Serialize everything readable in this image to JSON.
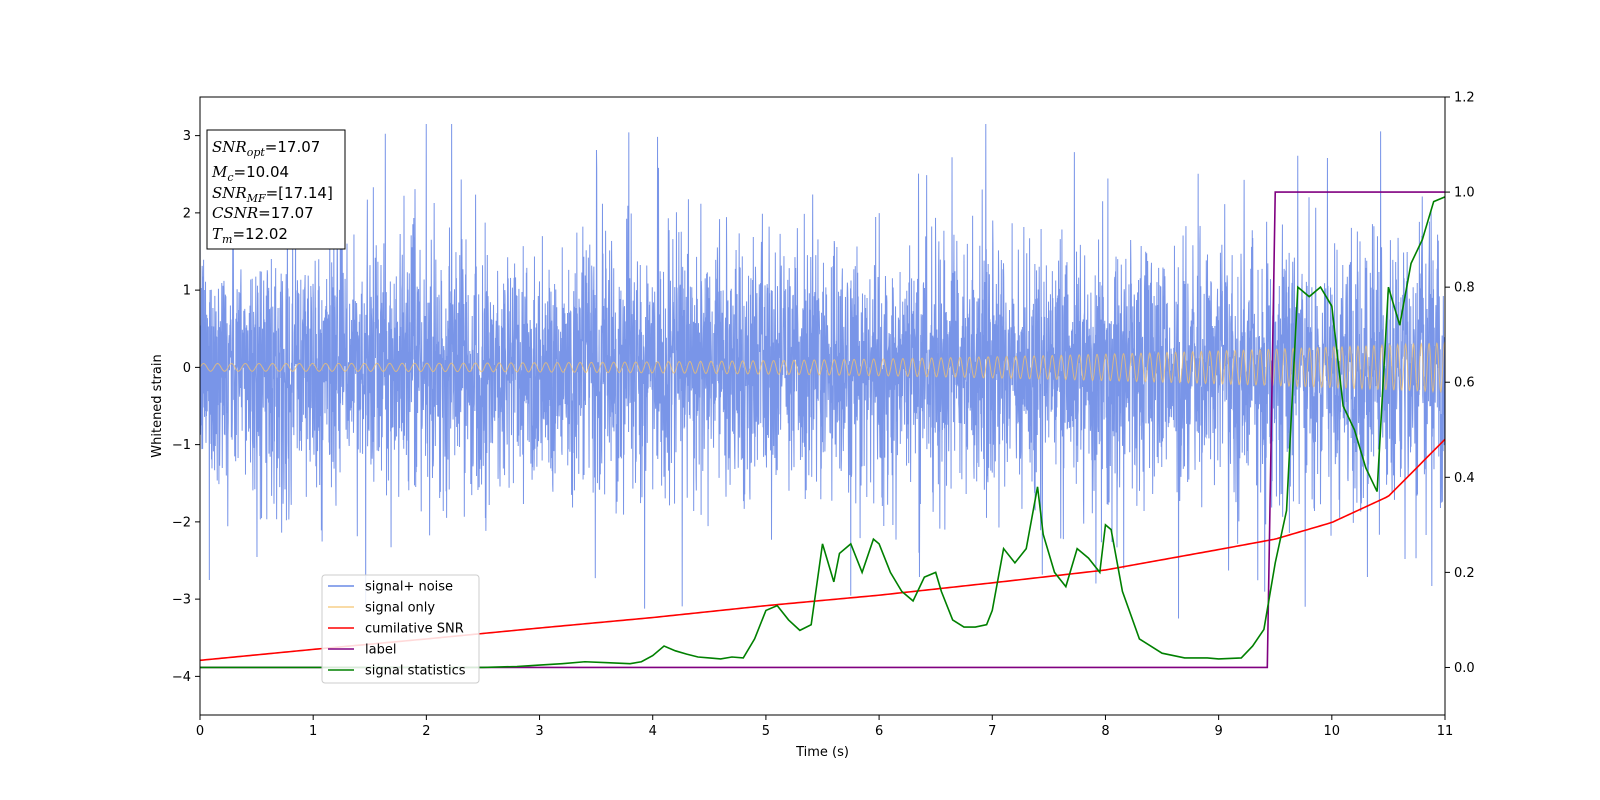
{
  "chart_data": {
    "type": "line",
    "xlabel": "Time (s)",
    "ylabel": "Whitened strain",
    "xlim": [
      0,
      11
    ],
    "ylim": [
      -4.5,
      3.5
    ],
    "y2lim": [
      -0.1,
      1.2
    ],
    "xticks": [
      "0",
      "1",
      "2",
      "3",
      "4",
      "5",
      "6",
      "7",
      "8",
      "9",
      "10",
      "11"
    ],
    "xtick_values": [
      0,
      1,
      2,
      3,
      4,
      5,
      6,
      7,
      8,
      9,
      10,
      11
    ],
    "yticks": [
      "−4",
      "−3",
      "−2",
      "−1",
      "0",
      "1",
      "2",
      "3"
    ],
    "ytick_values": [
      -4,
      -3,
      -2,
      -1,
      0,
      1,
      2,
      3
    ],
    "y2ticks": [
      "0.0",
      "0.2",
      "0.4",
      "0.6",
      "0.8",
      "1.0",
      "1.2"
    ],
    "y2tick_values": [
      0,
      0.2,
      0.4,
      0.6,
      0.8,
      1.0,
      1.2
    ],
    "grid": false,
    "legend_position": "lower-left",
    "series": [
      {
        "name": "signal+ noise",
        "axis": "left",
        "color": "#6a8ae6",
        "description_values": {
          "typical_range": [
            -2.2,
            2.2
          ],
          "extremes": [
            -3.25,
            3.15
          ]
        }
      },
      {
        "name": "signal only",
        "axis": "left",
        "color": "#f5c36b",
        "amplitude_start": 0.05,
        "amplitude_end": 0.32
      },
      {
        "name": "cumilative SNR",
        "axis": "right",
        "color": "#ff0000",
        "x": [
          0,
          1,
          2,
          3,
          4,
          5,
          6,
          7,
          8,
          9,
          9.5,
          10,
          10.5,
          11
        ],
        "y": [
          0.015,
          0.038,
          0.06,
          0.083,
          0.105,
          0.13,
          0.152,
          0.178,
          0.205,
          0.248,
          0.27,
          0.305,
          0.36,
          0.48
        ]
      },
      {
        "name": "label",
        "axis": "right",
        "color": "#800080",
        "x": [
          0,
          9.43,
          9.5,
          11
        ],
        "y": [
          0,
          0,
          1,
          1
        ]
      },
      {
        "name": "signal statistics",
        "axis": "right",
        "color": "#008000",
        "x": [
          0,
          0.5,
          1,
          1.5,
          2,
          2.5,
          2.8,
          3,
          3.2,
          3.4,
          3.6,
          3.8,
          3.9,
          4,
          4.1,
          4.2,
          4.3,
          4.4,
          4.5,
          4.6,
          4.7,
          4.8,
          4.9,
          5,
          5.1,
          5.2,
          5.3,
          5.4,
          5.5,
          5.6,
          5.65,
          5.75,
          5.85,
          5.95,
          6,
          6.1,
          6.2,
          6.3,
          6.4,
          6.5,
          6.55,
          6.65,
          6.75,
          6.85,
          6.95,
          7,
          7.1,
          7.2,
          7.3,
          7.4,
          7.45,
          7.55,
          7.65,
          7.75,
          7.85,
          7.95,
          8,
          8.05,
          8.15,
          8.3,
          8.5,
          8.7,
          8.9,
          9,
          9.2,
          9.3,
          9.4,
          9.5,
          9.6,
          9.7,
          9.8,
          9.9,
          10,
          10.1,
          10.2,
          10.3,
          10.4,
          10.5,
          10.6,
          10.7,
          10.8,
          10.9,
          11
        ],
        "y": [
          0,
          0,
          0,
          0,
          0,
          0,
          0.002,
          0.005,
          0.008,
          0.012,
          0.01,
          0.008,
          0.012,
          0.025,
          0.045,
          0.035,
          0.028,
          0.022,
          0.02,
          0.018,
          0.022,
          0.02,
          0.06,
          0.12,
          0.13,
          0.1,
          0.078,
          0.09,
          0.26,
          0.18,
          0.24,
          0.26,
          0.2,
          0.27,
          0.26,
          0.2,
          0.16,
          0.14,
          0.19,
          0.2,
          0.16,
          0.1,
          0.085,
          0.085,
          0.09,
          0.12,
          0.25,
          0.22,
          0.25,
          0.38,
          0.28,
          0.2,
          0.17,
          0.25,
          0.23,
          0.2,
          0.3,
          0.29,
          0.16,
          0.06,
          0.03,
          0.02,
          0.02,
          0.018,
          0.02,
          0.045,
          0.08,
          0.22,
          0.33,
          0.8,
          0.78,
          0.8,
          0.76,
          0.55,
          0.5,
          0.42,
          0.37,
          0.8,
          0.72,
          0.85,
          0.9,
          0.98,
          0.99
        ]
      }
    ],
    "annotation": {
      "lines": [
        {
          "sym": "SNR",
          "sub": "opt",
          "val": "=17.07"
        },
        {
          "sym": "M",
          "sub": "c",
          "val": "=10.04"
        },
        {
          "sym": "SNR",
          "sub": "MF",
          "val": "=[17.14]"
        },
        {
          "sym": "CSNR",
          "sub": "",
          "val": "=17.07"
        },
        {
          "sym": "T",
          "sub": "m",
          "val": "=12.02"
        }
      ]
    }
  }
}
